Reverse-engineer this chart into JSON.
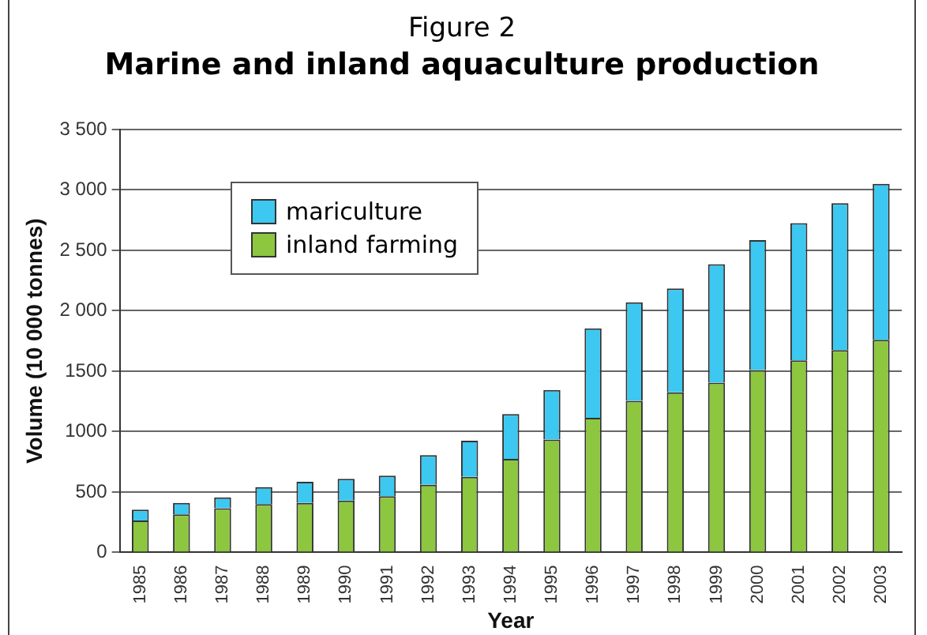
{
  "chart_data": {
    "type": "bar",
    "subtitle": "Figure 2",
    "title": "Marine and inland aquaculture production",
    "xlabel": "Year",
    "ylabel": "Volume (10 000 tonnes)",
    "categories": [
      "1985",
      "1986",
      "1987",
      "1988",
      "1989",
      "1990",
      "1991",
      "1992",
      "1993",
      "1994",
      "1995",
      "1996",
      "1997",
      "1998",
      "1999",
      "2000",
      "2001",
      "2002",
      "2003"
    ],
    "series": [
      {
        "name": "inland farming",
        "color": "#8dc63f",
        "values": [
          265,
          315,
          365,
          400,
          410,
          430,
          465,
          560,
          625,
          775,
          935,
          1115,
          1255,
          1325,
          1405,
          1510,
          1590,
          1675,
          1760
        ]
      },
      {
        "name": "mariculture",
        "color": "#3cc8f0",
        "values": [
          90,
          95,
          90,
          140,
          175,
          180,
          170,
          245,
          300,
          370,
          410,
          740,
          815,
          860,
          980,
          1075,
          1135,
          1215,
          1290
        ]
      }
    ],
    "stacked": true,
    "ylim": [
      0,
      3500
    ],
    "yticks": [
      0,
      500,
      {
        "value": 1000,
        "label": "1000"
      },
      {
        "value": 1500,
        "label": "1500"
      },
      {
        "value": 2000,
        "label": "2 000"
      },
      {
        "value": 2500,
        "label": "2 500"
      },
      {
        "value": 3000,
        "label": "3 000"
      },
      {
        "value": 3500,
        "label": "3 500"
      }
    ],
    "grid": "y",
    "legend": "top left"
  }
}
